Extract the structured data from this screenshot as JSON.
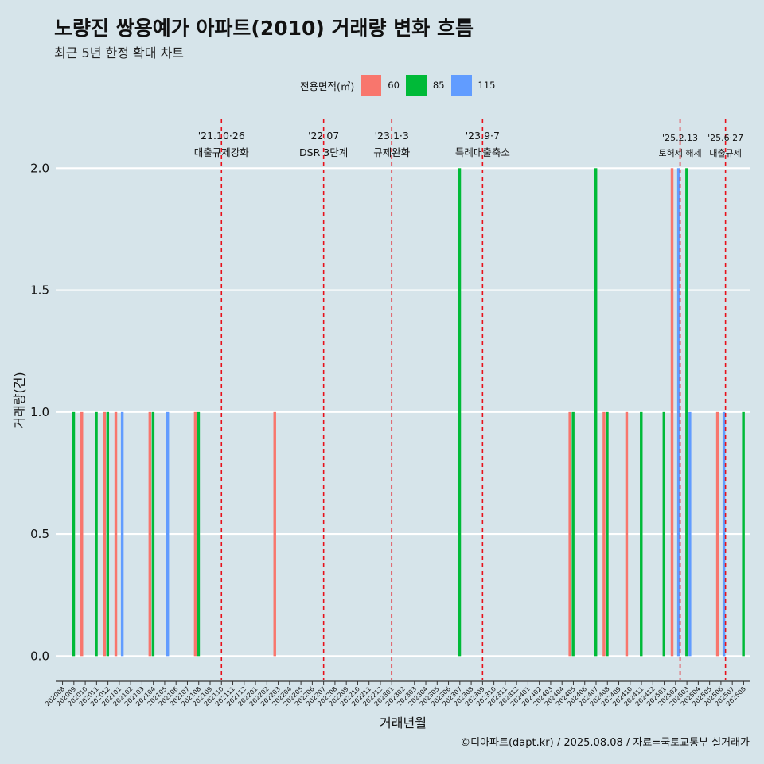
{
  "title": "노량진 쌍용예가 아파트(2010) 거래량 변화 흐름",
  "subtitle": "최근 5년 한정 확대 차트",
  "caption": "©디아파트(dapt.kr) / 2025.08.08 / 자료=국토교통부 실거래가",
  "legend": {
    "title": "전용면적(㎡)",
    "items": [
      {
        "label": "60",
        "color": "#f8766d"
      },
      {
        "label": "85",
        "color": "#00ba38"
      },
      {
        "label": "115",
        "color": "#619cff"
      }
    ]
  },
  "chart_data": {
    "type": "bar",
    "xlabel": "거래년월",
    "ylabel": "거래량(건)",
    "ylim": [
      0,
      2.2
    ],
    "yticks": [
      0.0,
      0.5,
      1.0,
      1.5,
      2.0
    ],
    "ytick_labels": [
      "0.0",
      "0.5",
      "1.0",
      "1.5",
      "2.0"
    ],
    "grid": true,
    "categories": [
      "202008",
      "202009",
      "202010",
      "202011",
      "202012",
      "202101",
      "202102",
      "202103",
      "202104",
      "202105",
      "202106",
      "202107",
      "202108",
      "202109",
      "202110",
      "202111",
      "202112",
      "202201",
      "202202",
      "202203",
      "202204",
      "202205",
      "202206",
      "202207",
      "202208",
      "202209",
      "202210",
      "202211",
      "202212",
      "202301",
      "202302",
      "202303",
      "202304",
      "202305",
      "202306",
      "202307",
      "202308",
      "202309",
      "202310",
      "202311",
      "202312",
      "202401",
      "202402",
      "202403",
      "202404",
      "202405",
      "202406",
      "202407",
      "202408",
      "202409",
      "202410",
      "202411",
      "202412",
      "202501",
      "202502",
      "202503",
      "202504",
      "202505",
      "202506",
      "202507",
      "202508"
    ],
    "series_names": [
      "60",
      "85",
      "115"
    ],
    "bars": [
      {
        "month": "202009",
        "values": [
          0,
          1,
          0
        ]
      },
      {
        "month": "202010",
        "values": [
          1,
          0,
          0
        ]
      },
      {
        "month": "202011",
        "values": [
          0,
          1,
          0
        ]
      },
      {
        "month": "202012",
        "values": [
          1,
          1,
          0
        ]
      },
      {
        "month": "202101",
        "values": [
          1,
          0,
          1
        ]
      },
      {
        "month": "202104",
        "values": [
          1,
          1,
          0
        ]
      },
      {
        "month": "202105",
        "values": [
          0,
          0,
          1
        ]
      },
      {
        "month": "202108",
        "values": [
          1,
          1,
          0
        ]
      },
      {
        "month": "202203",
        "values": [
          1,
          0,
          0
        ]
      },
      {
        "month": "202307",
        "values": [
          0,
          2,
          0
        ]
      },
      {
        "month": "202405",
        "values": [
          1,
          1,
          0
        ]
      },
      {
        "month": "202407",
        "values": [
          0,
          2,
          0
        ]
      },
      {
        "month": "202408",
        "values": [
          1,
          1,
          0
        ]
      },
      {
        "month": "202410",
        "values": [
          1,
          0,
          0
        ]
      },
      {
        "month": "202411",
        "values": [
          0,
          1,
          0
        ]
      },
      {
        "month": "202501",
        "values": [
          0,
          1,
          0
        ]
      },
      {
        "month": "202502",
        "values": [
          2,
          0,
          2
        ]
      },
      {
        "month": "202503",
        "values": [
          0,
          2,
          1
        ]
      },
      {
        "month": "202506",
        "values": [
          1,
          0,
          1
        ]
      },
      {
        "month": "202508",
        "values": [
          0,
          1,
          0
        ]
      }
    ],
    "annotations": [
      {
        "x": 14.0,
        "date": "'21.10·26",
        "label": "대출규제강화"
      },
      {
        "x": 23.0,
        "date": "'22.07",
        "label": "DSR 3단계"
      },
      {
        "x": 29.0,
        "date": "'23.1·3",
        "label": "규제완화"
      },
      {
        "x": 37.0,
        "date": "'23.9·7",
        "label": "특례대출축소"
      },
      {
        "x": 54.4,
        "date": "'25.2.13",
        "label": "토허제 해제"
      },
      {
        "x": 58.4,
        "date": "'25.6·27",
        "label": "대출규제"
      }
    ]
  }
}
